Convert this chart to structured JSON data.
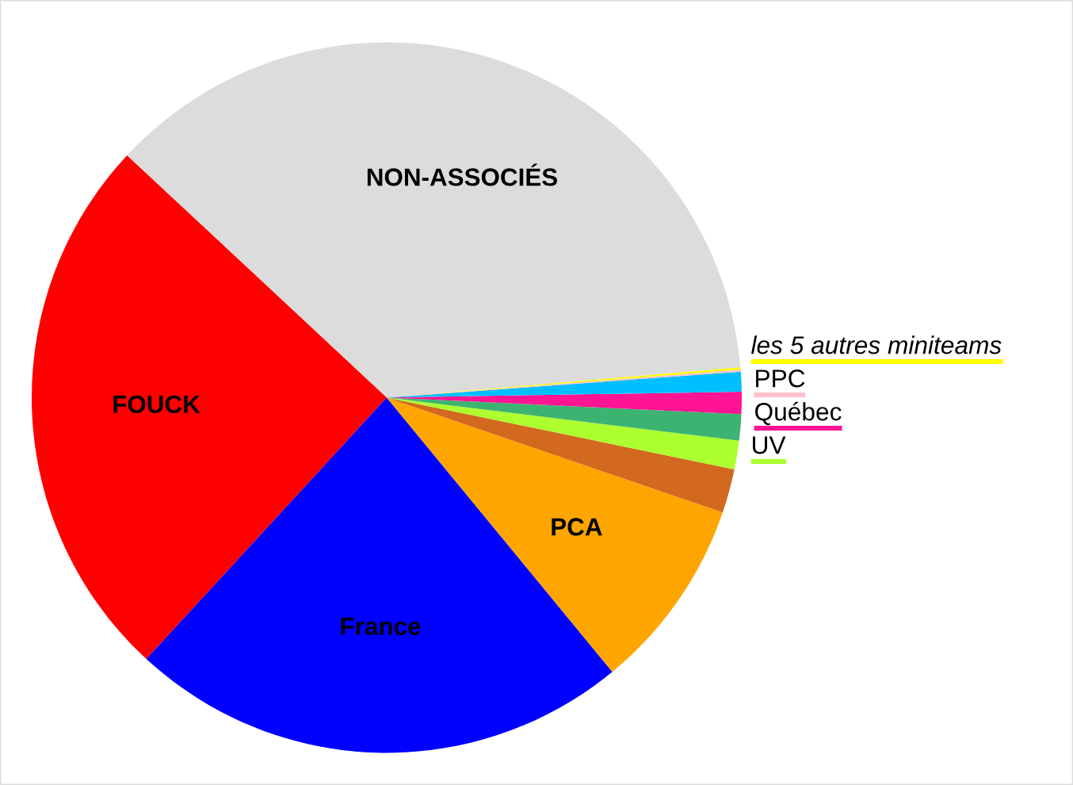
{
  "chart_data": {
    "type": "pie",
    "categories": [
      "NON-ASSOCIÉS",
      "FOUCK",
      "France",
      "PCA",
      null,
      "UV",
      null,
      "Québec",
      null,
      "PPC",
      "les 5 autres miniteams"
    ],
    "values": [
      36.7,
      25.1,
      22.8,
      8.8,
      2.0,
      1.3,
      1.2,
      1.0,
      0.9,
      0.1,
      0.1
    ],
    "colors": [
      "#dcdcdc",
      "#ff0000",
      "#0000ff",
      "#ffa500",
      "#d2691e",
      "#adff2f",
      "#3cb371",
      "#ff1493",
      "#00bfff",
      "#ffc0cb",
      "#ffff00"
    ]
  }
}
